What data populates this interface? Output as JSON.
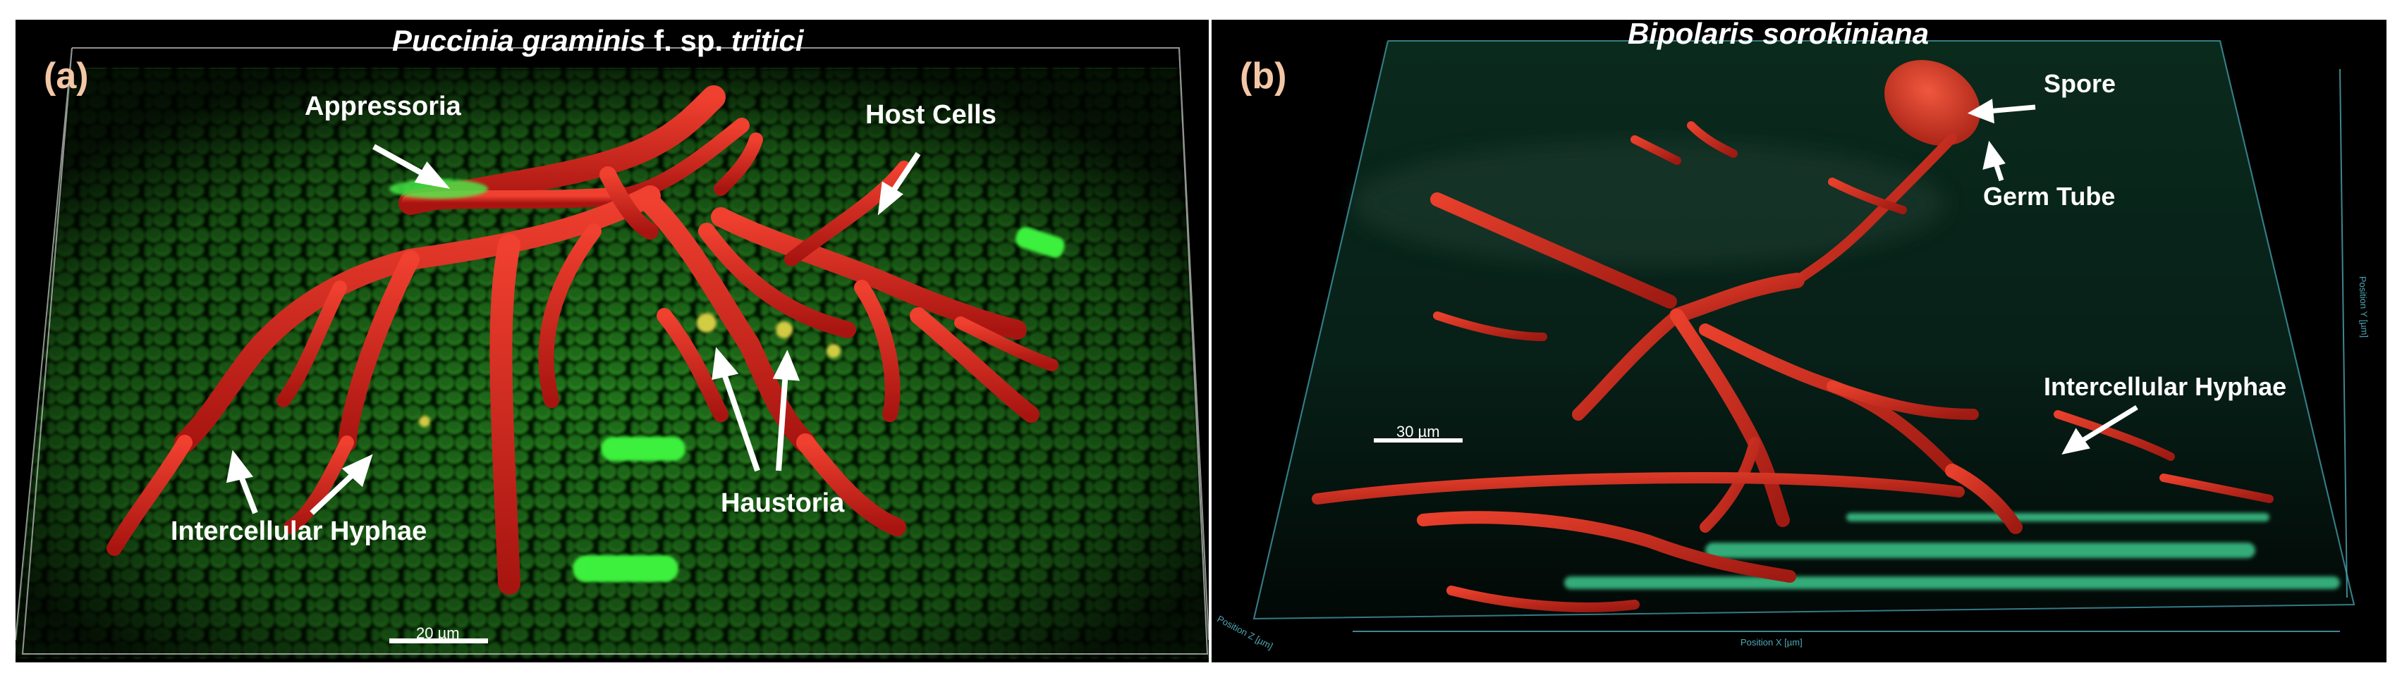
{
  "panel_a": {
    "tag": "(a)",
    "title_italic": "Puccinia graminis",
    "title_mid": " f. sp. ",
    "title_italic2": "tritici",
    "annotations": {
      "appressoria": "Appressoria",
      "host_cells": "Host Cells",
      "intercellular_hyphae": "Intercellular Hyphae",
      "haustoria": "Haustoria"
    },
    "scale_bar": "20 µm"
  },
  "panel_b": {
    "tag": "(b)",
    "title": "Bipolaris sorokiniana",
    "annotations": {
      "spore": "Spore",
      "germ_tube": "Germ Tube",
      "intercellular_hyphae": "Intercellular Hyphae"
    },
    "scale_bar": "30 µm",
    "axis_x": "Position X [µm]",
    "axis_z": "Position Z [µm]",
    "axis_y": "Position Y [µm]"
  },
  "colors": {
    "background": "#000000",
    "hyphae_red": "#d0281c",
    "host_green": "#2fb52a",
    "bright_green": "#39e83c",
    "tag_peach": "#f3c7a6",
    "axis_cyan": "#4fa9b6"
  }
}
